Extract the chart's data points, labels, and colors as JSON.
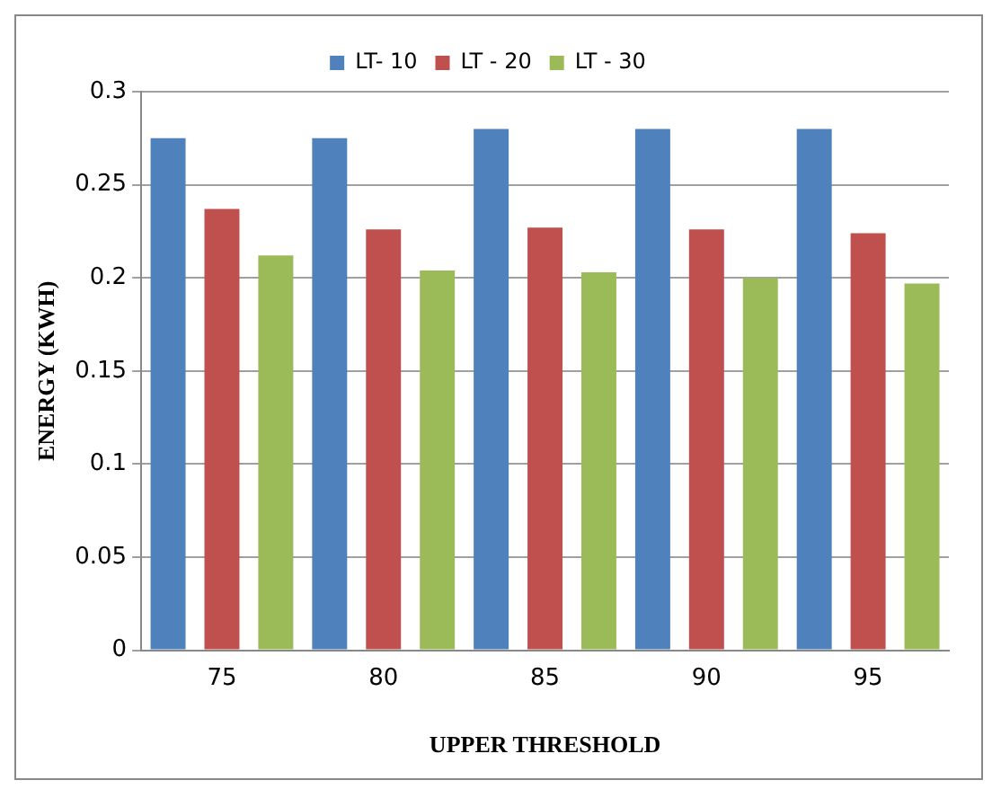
{
  "chart_data": {
    "type": "bar",
    "xlabel": "UPPER THRESHOLD",
    "ylabel": "ENERGY (KWH)",
    "categories": [
      "75",
      "80",
      "85",
      "90",
      "95"
    ],
    "series": [
      {
        "name": "LT- 10",
        "color": "#4f81bd",
        "values": [
          0.275,
          0.275,
          0.28,
          0.28,
          0.28
        ]
      },
      {
        "name": "LT - 20",
        "color": "#c0504d",
        "values": [
          0.237,
          0.226,
          0.227,
          0.226,
          0.224
        ]
      },
      {
        "name": "LT - 30",
        "color": "#9bbb59",
        "values": [
          0.212,
          0.204,
          0.203,
          0.2,
          0.197
        ]
      }
    ],
    "ylim": [
      0,
      0.3
    ],
    "yticks": [
      0,
      0.05,
      0.1,
      0.15,
      0.2,
      0.25,
      0.3
    ],
    "grid": "y",
    "legend": "top"
  }
}
